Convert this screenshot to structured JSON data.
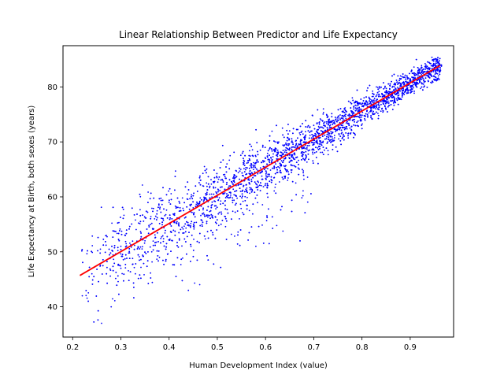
{
  "chart_data": {
    "type": "scatter",
    "title": "Linear Relationship Between Predictor and Life Expectancy",
    "xlabel": "Human Development Index (value)",
    "ylabel": "Life Expectancy at Birth, both sexes (years)",
    "xlim": [
      0.18,
      0.99
    ],
    "ylim": [
      34.5,
      87.5
    ],
    "xticks": [
      0.2,
      0.3,
      0.4,
      0.5,
      0.6,
      0.7,
      0.8,
      0.9
    ],
    "xtick_labels": [
      "0.2",
      "0.3",
      "0.4",
      "0.5",
      "0.6",
      "0.7",
      "0.8",
      "0.9"
    ],
    "yticks": [
      40,
      50,
      60,
      70,
      80
    ],
    "ytick_labels": [
      "40",
      "50",
      "60",
      "70",
      "80"
    ],
    "grid": false,
    "legend": "none",
    "colors": {
      "points": "#0000ff",
      "fit_line": "#ff0000"
    },
    "series": [
      {
        "kind": "points",
        "point_count": 4000,
        "sample": [
          [
            0.22,
            42
          ],
          [
            0.24,
            46
          ],
          [
            0.26,
            37
          ],
          [
            0.28,
            40
          ],
          [
            0.3,
            47
          ],
          [
            0.3,
            51
          ],
          [
            0.33,
            46
          ],
          [
            0.35,
            52
          ],
          [
            0.37,
            56
          ],
          [
            0.38,
            49
          ],
          [
            0.4,
            59
          ],
          [
            0.42,
            55
          ],
          [
            0.44,
            43
          ],
          [
            0.45,
            58
          ],
          [
            0.47,
            62
          ],
          [
            0.5,
            60
          ],
          [
            0.52,
            66
          ],
          [
            0.55,
            63
          ],
          [
            0.58,
            51
          ],
          [
            0.6,
            67
          ],
          [
            0.62,
            70
          ],
          [
            0.65,
            72
          ],
          [
            0.68,
            70
          ],
          [
            0.7,
            73
          ],
          [
            0.72,
            76
          ],
          [
            0.75,
            74
          ],
          [
            0.78,
            78
          ],
          [
            0.8,
            77
          ],
          [
            0.83,
            80
          ],
          [
            0.85,
            79
          ],
          [
            0.88,
            82
          ],
          [
            0.9,
            81
          ],
          [
            0.92,
            83
          ],
          [
            0.95,
            85
          ],
          [
            0.96,
            83
          ]
        ]
      },
      {
        "kind": "fit_line",
        "x": [
          0.215,
          0.962
        ],
        "y": [
          45.7,
          83.9
        ]
      }
    ]
  }
}
